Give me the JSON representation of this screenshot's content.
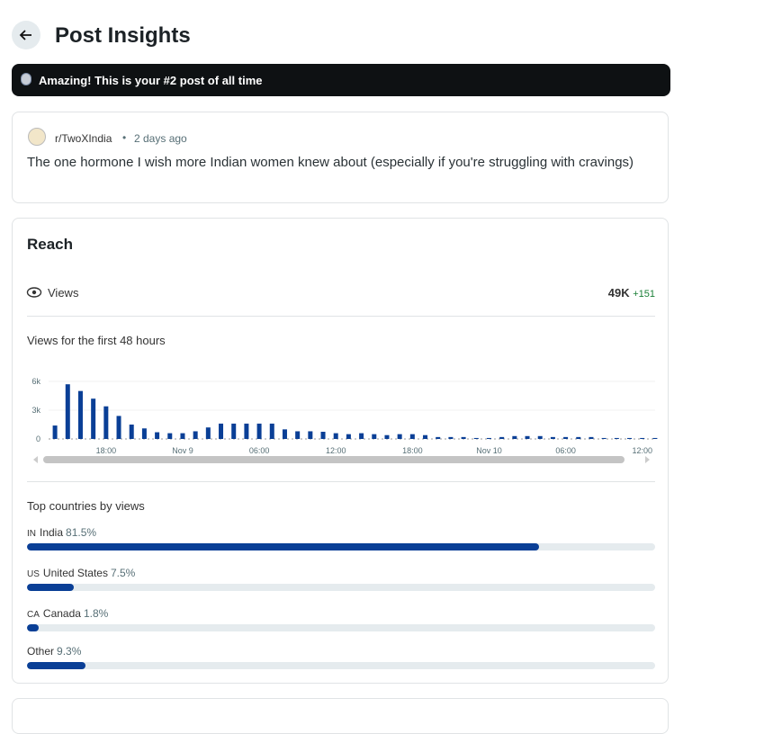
{
  "header": {
    "title": "Post Insights"
  },
  "banner": {
    "text": "Amazing! This is your #2 post of all time"
  },
  "post": {
    "subreddit": "r/TwoXIndia",
    "time": "2 days ago",
    "title": "The one hormone I wish more Indian women knew about (especially if you're struggling with cravings)"
  },
  "reach": {
    "title": "Reach",
    "views_label": "Views",
    "views_total": "49K",
    "views_change": "+151",
    "countries_title": "Top countries by views",
    "countries_xlim": [
      0,
      100
    ],
    "countries": [
      {
        "code": "IN",
        "name": "India",
        "value": 81.5,
        "value_label": "81.5%"
      },
      {
        "code": "US",
        "name": "United States",
        "value": 7.5,
        "value_label": "7.5%"
      },
      {
        "code": "CA",
        "name": "Canada",
        "value": 1.8,
        "value_label": "1.8%"
      },
      {
        "name": "Other",
        "value": 9.3,
        "value_label": "9.3%"
      }
    ]
  },
  "chart_data": {
    "type": "bar",
    "title": "Views for the first 48 hours",
    "color": "#0a3f96",
    "categories": [
      null,
      null,
      null,
      null,
      "18:00",
      null,
      null,
      null,
      null,
      null,
      "Nov 9",
      null,
      null,
      null,
      null,
      null,
      "06:00",
      null,
      null,
      null,
      null,
      null,
      "12:00",
      null,
      null,
      null,
      null,
      null,
      "18:00",
      null,
      null,
      null,
      null,
      null,
      "Nov 10",
      null,
      null,
      null,
      null,
      null,
      "06:00",
      null,
      null,
      null,
      null,
      null,
      "12:00",
      null
    ],
    "values": [
      1400,
      5700,
      5000,
      4200,
      3400,
      2400,
      1500,
      1100,
      700,
      600,
      600,
      800,
      1200,
      1600,
      1600,
      1600,
      1600,
      1600,
      1000,
      800,
      800,
      750,
      600,
      500,
      600,
      500,
      400,
      500,
      500,
      400,
      200,
      200,
      200,
      100,
      100,
      200,
      300,
      300,
      300,
      200,
      200,
      200,
      200,
      100,
      100,
      100,
      100,
      100
    ],
    "ylim": [
      0,
      6000
    ],
    "yticks": [
      0,
      {
        "value": 3000,
        "label": "3k"
      },
      {
        "value": 6000,
        "label": "6k"
      }
    ],
    "grid": true
  }
}
